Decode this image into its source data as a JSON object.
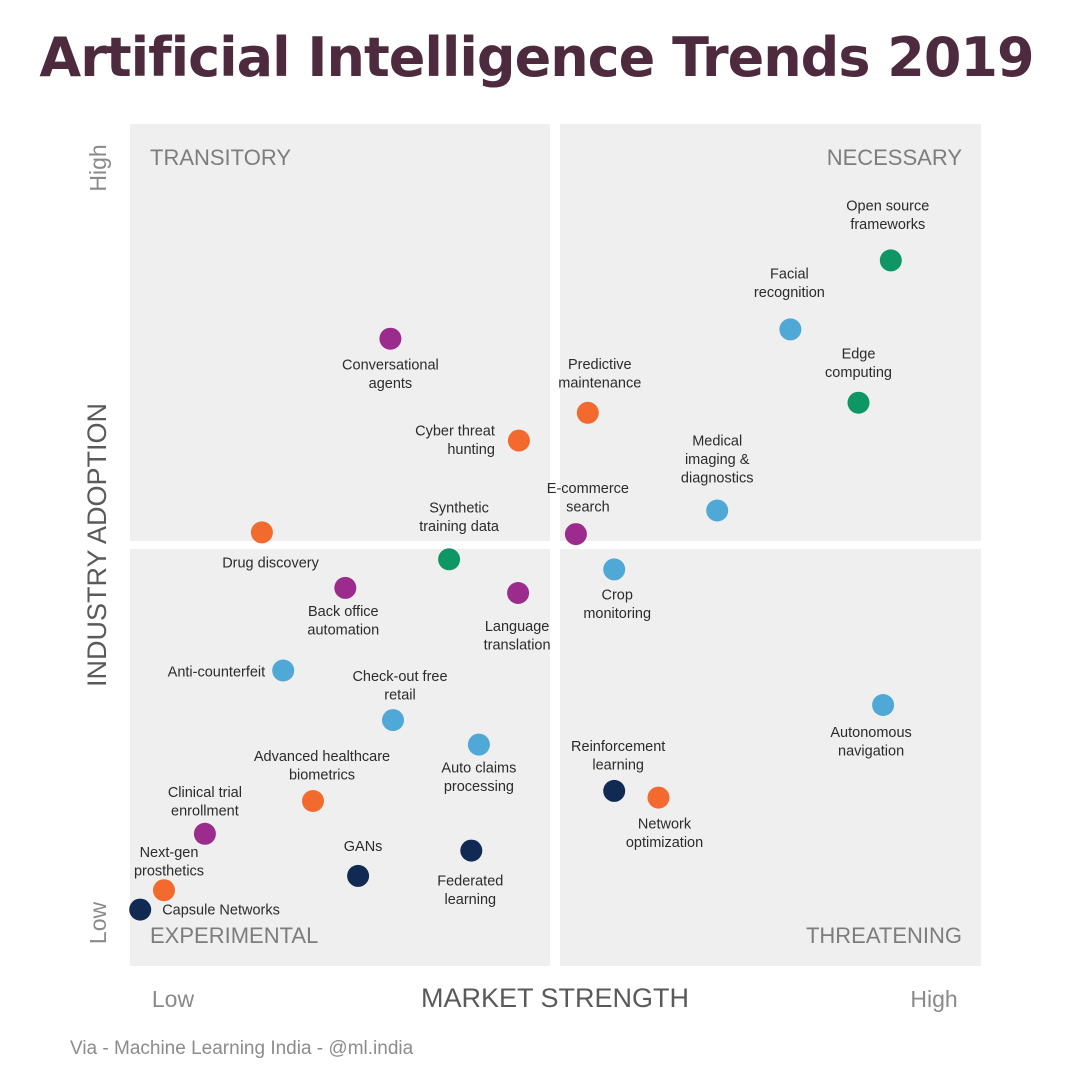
{
  "header": {
    "title": "Artificial Intelligence Trends 2019"
  },
  "footer": {
    "credit": "Via - Machine Learning India - @ml.india"
  },
  "colors": {
    "orange": "#f26a2e",
    "purple": "#9b2b8d",
    "green": "#0e9664",
    "lightblue": "#4fa8d6",
    "navy": "#102a54",
    "panel": "#efefef"
  },
  "chart_data": {
    "type": "scatter",
    "xlabel": "MARKET STRENGTH",
    "ylabel": "INDUSTRY ADOPTION",
    "x_low": "Low",
    "x_high": "High",
    "y_low": "Low",
    "y_high": "High",
    "xlim": [
      0,
      100
    ],
    "ylim": [
      0,
      100
    ],
    "quadrants": {
      "top_left": "TRANSITORY",
      "top_right": "NECESSARY",
      "bottom_left": "EXPERIMENTAL",
      "bottom_right": "THREATENING"
    },
    "points": [
      {
        "label": "Open source frameworks",
        "x": 89.4,
        "y": 83.8,
        "color": "green"
      },
      {
        "label": "Facial recognition",
        "x": 77.6,
        "y": 75.6,
        "color": "lightblue"
      },
      {
        "label": "Edge computing",
        "x": 85.6,
        "y": 66.9,
        "color": "green"
      },
      {
        "label": "Conversational agents",
        "x": 30.6,
        "y": 74.5,
        "color": "purple"
      },
      {
        "label": "Predictive maintenance",
        "x": 53.8,
        "y": 65.7,
        "color": "orange"
      },
      {
        "label": "Cyber threat hunting",
        "x": 45.7,
        "y": 62.4,
        "color": "orange"
      },
      {
        "label": "Medical imaging & diagnostics",
        "x": 69.0,
        "y": 54.1,
        "color": "lightblue"
      },
      {
        "label": "E-commerce search",
        "x": 52.4,
        "y": 51.3,
        "color": "purple"
      },
      {
        "label": "Drug discovery",
        "x": 15.5,
        "y": 51.5,
        "color": "orange"
      },
      {
        "label": "Synthetic training data",
        "x": 37.5,
        "y": 48.3,
        "color": "green"
      },
      {
        "label": "Crop monitoring",
        "x": 56.9,
        "y": 47.1,
        "color": "lightblue"
      },
      {
        "label": "Back office automation",
        "x": 25.3,
        "y": 44.9,
        "color": "purple"
      },
      {
        "label": "Language translation",
        "x": 45.6,
        "y": 44.3,
        "color": "purple"
      },
      {
        "label": "Anti-counterfeit",
        "x": 18.0,
        "y": 35.1,
        "color": "lightblue"
      },
      {
        "label": "Check-out free retail",
        "x": 30.9,
        "y": 29.2,
        "color": "lightblue"
      },
      {
        "label": "Autonomous navigation",
        "x": 88.5,
        "y": 31.0,
        "color": "lightblue"
      },
      {
        "label": "Auto claims processing",
        "x": 41.0,
        "y": 26.3,
        "color": "lightblue"
      },
      {
        "label": "Advanced healthcare biometrics",
        "x": 21.5,
        "y": 19.6,
        "color": "orange"
      },
      {
        "label": "Reinforcement learning",
        "x": 56.9,
        "y": 20.8,
        "color": "navy"
      },
      {
        "label": "Network optimization",
        "x": 62.1,
        "y": 20.0,
        "color": "orange"
      },
      {
        "label": "Clinical trial enrollment",
        "x": 8.8,
        "y": 15.7,
        "color": "purple"
      },
      {
        "label": "GANs",
        "x": 26.8,
        "y": 10.7,
        "color": "navy"
      },
      {
        "label": "Federated learning",
        "x": 40.1,
        "y": 13.7,
        "color": "navy"
      },
      {
        "label": "Next-gen prosthetics",
        "x": 4.0,
        "y": 9.0,
        "color": "orange"
      },
      {
        "label": "Capsule Networks",
        "x": 1.2,
        "y": 6.7,
        "color": "navy"
      }
    ]
  }
}
